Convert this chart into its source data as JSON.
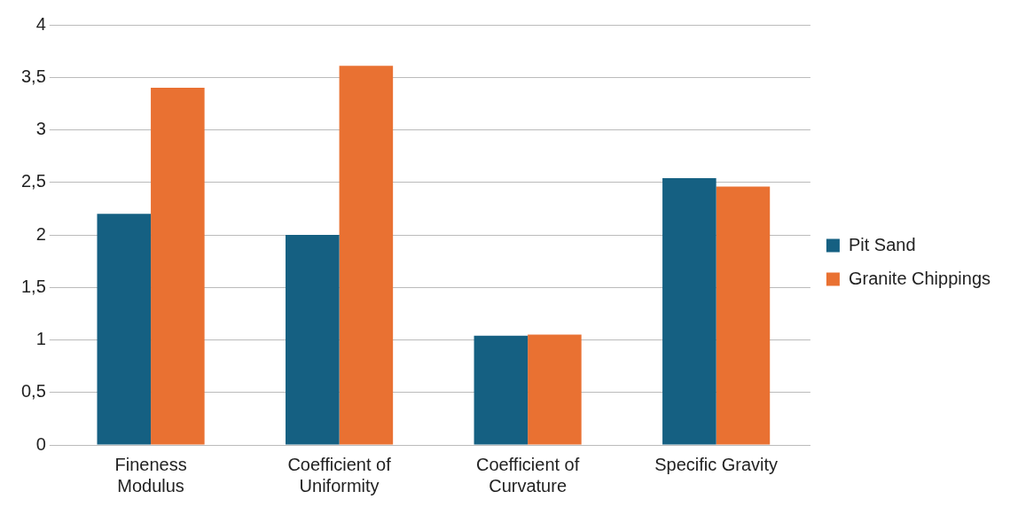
{
  "chart_data": {
    "type": "bar",
    "categories": [
      "Fineness Modulus",
      "Coefficient of Uniformity",
      "Coefficient of Curvature",
      "Specific Gravity"
    ],
    "series": [
      {
        "name": "Pit Sand",
        "color": "#156082",
        "values": [
          2.2,
          2.0,
          1.04,
          2.54
        ]
      },
      {
        "name": "Granite Chippings",
        "color": "#e97132",
        "values": [
          3.4,
          3.61,
          1.05,
          2.46
        ]
      }
    ],
    "ylim": [
      0,
      4
    ],
    "yticks": [
      0,
      {
        "value": 0.5,
        "label": "0,5"
      },
      1,
      {
        "value": 1.5,
        "label": "1,5"
      },
      2,
      {
        "value": 2.5,
        "label": "2,5"
      },
      3,
      {
        "value": 3.5,
        "label": "3,5"
      },
      4
    ],
    "grid": "y",
    "legend": "right"
  }
}
